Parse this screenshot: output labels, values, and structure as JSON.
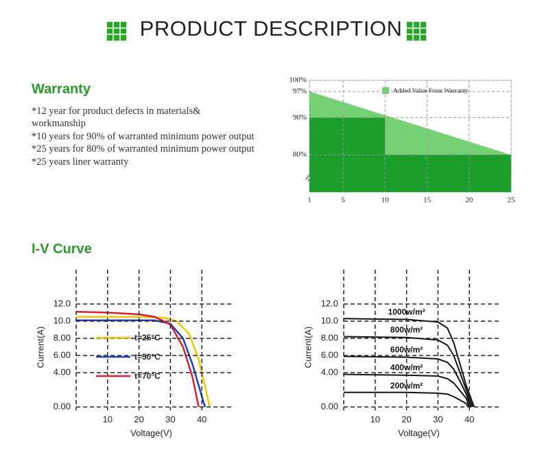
{
  "header": {
    "title": "PRODUCT DESCRIPTION"
  },
  "warranty": {
    "title": "Warranty",
    "lines": [
      "*12 year for product defects in materials&",
      "workmanship",
      "*10 years for 90% of warranted minimum power output",
      "*25 years for 80% of warranted minimum power output",
      "*25 years liner warranty"
    ]
  },
  "iv_section": {
    "title": "I-V Curve"
  },
  "chart_data": [
    {
      "type": "area",
      "legend": "upper-right",
      "grid": true,
      "xlim": [
        1,
        25
      ],
      "ylim": [
        70,
        100
      ],
      "xticks": [
        1,
        5,
        10,
        15,
        20,
        25
      ],
      "yticks": [
        {
          "value": 100,
          "label": "100%"
        },
        {
          "value": 97,
          "label": "97%"
        },
        {
          "value": 90,
          "label": "90%"
        },
        {
          "value": 80,
          "label": "80%"
        }
      ],
      "series": [
        {
          "name": "Added Value From Warranty",
          "color": "#74d174",
          "x": [
            1,
            25
          ],
          "values": [
            97,
            80
          ]
        },
        {
          "color": "#1c9e2c",
          "x": [
            1,
            10,
            10,
            25
          ],
          "values": [
            90,
            90,
            80,
            80
          ]
        }
      ]
    },
    {
      "type": "line",
      "legend": "upper-left",
      "grid": true,
      "x_label": "Voltage(V)",
      "y_label": "Current(A)",
      "xlim": [
        0,
        50
      ],
      "ylim": [
        0,
        16
      ],
      "xticks": [
        10,
        20,
        30,
        40
      ],
      "yticks": [
        {
          "value": 0,
          "label": "0.00"
        },
        {
          "value": 4,
          "label": "4.00"
        },
        {
          "value": 6,
          "label": "6.00"
        },
        {
          "value": 8,
          "label": "8.00"
        },
        {
          "value": 10,
          "label": "10.0"
        },
        {
          "value": 12,
          "label": "12.0"
        }
      ],
      "series": [
        {
          "name": "t=25°C",
          "color": "#f2c500",
          "x": [
            0,
            20,
            28,
            32,
            36,
            39,
            41,
            42.5
          ],
          "values": [
            10.5,
            10.5,
            10.4,
            10,
            8.5,
            5.5,
            2.5,
            0
          ]
        },
        {
          "name": "t=50°C",
          "color": "#1f3fb4",
          "x": [
            0,
            15,
            25,
            30,
            34,
            37,
            39,
            41
          ],
          "values": [
            10.1,
            10.1,
            10.1,
            9.7,
            8,
            5,
            2.5,
            0
          ]
        },
        {
          "name": "t=70°C",
          "color": "#d42030",
          "x": [
            0,
            10,
            20,
            25,
            30,
            34,
            37,
            39
          ],
          "values": [
            11.1,
            11,
            10.8,
            10.5,
            9.6,
            7,
            3.5,
            0
          ]
        }
      ]
    },
    {
      "type": "line",
      "legend": "inline",
      "grid": true,
      "x_label": "Voltage(V)",
      "y_label": "Current(A)",
      "xlim": [
        0,
        50
      ],
      "ylim": [
        0,
        16
      ],
      "xticks": [
        10,
        20,
        30,
        40
      ],
      "yticks": [
        {
          "value": 0,
          "label": "0.00"
        },
        {
          "value": 4,
          "label": "4.00"
        },
        {
          "value": 6,
          "label": "6.00"
        },
        {
          "value": 8,
          "label": "8.00"
        },
        {
          "value": 10,
          "label": "10.0"
        },
        {
          "value": 12,
          "label": "12.0"
        }
      ],
      "series": [
        {
          "name": "1000w/m²",
          "color": "#111111",
          "x": [
            0,
            20,
            30,
            33,
            35,
            37,
            39,
            41.5
          ],
          "values": [
            10.3,
            10.2,
            9.9,
            9.2,
            7.5,
            5,
            2.5,
            0
          ]
        },
        {
          "name": "800w/m²",
          "color": "#111111",
          "x": [
            0,
            20,
            30,
            33,
            35,
            37,
            39,
            41
          ],
          "values": [
            8.2,
            8.1,
            7.8,
            7.2,
            6,
            4,
            2,
            0
          ]
        },
        {
          "name": "600w/m²",
          "color": "#111111",
          "x": [
            0,
            20,
            30,
            33,
            35,
            37,
            39,
            40.5
          ],
          "values": [
            5.9,
            5.8,
            5.6,
            5.2,
            4.4,
            3,
            1.5,
            0
          ]
        },
        {
          "name": "400w/m²",
          "color": "#111111",
          "x": [
            0,
            20,
            30,
            33,
            35,
            37,
            39,
            40
          ],
          "values": [
            3.8,
            3.7,
            3.6,
            3.3,
            2.8,
            1.9,
            1,
            0
          ]
        },
        {
          "name": "200w/m²",
          "color": "#111111",
          "x": [
            0,
            20,
            30,
            33,
            35,
            37,
            39,
            39.5
          ],
          "values": [
            1.7,
            1.7,
            1.6,
            1.5,
            1.2,
            0.8,
            0.4,
            0
          ]
        }
      ]
    }
  ]
}
